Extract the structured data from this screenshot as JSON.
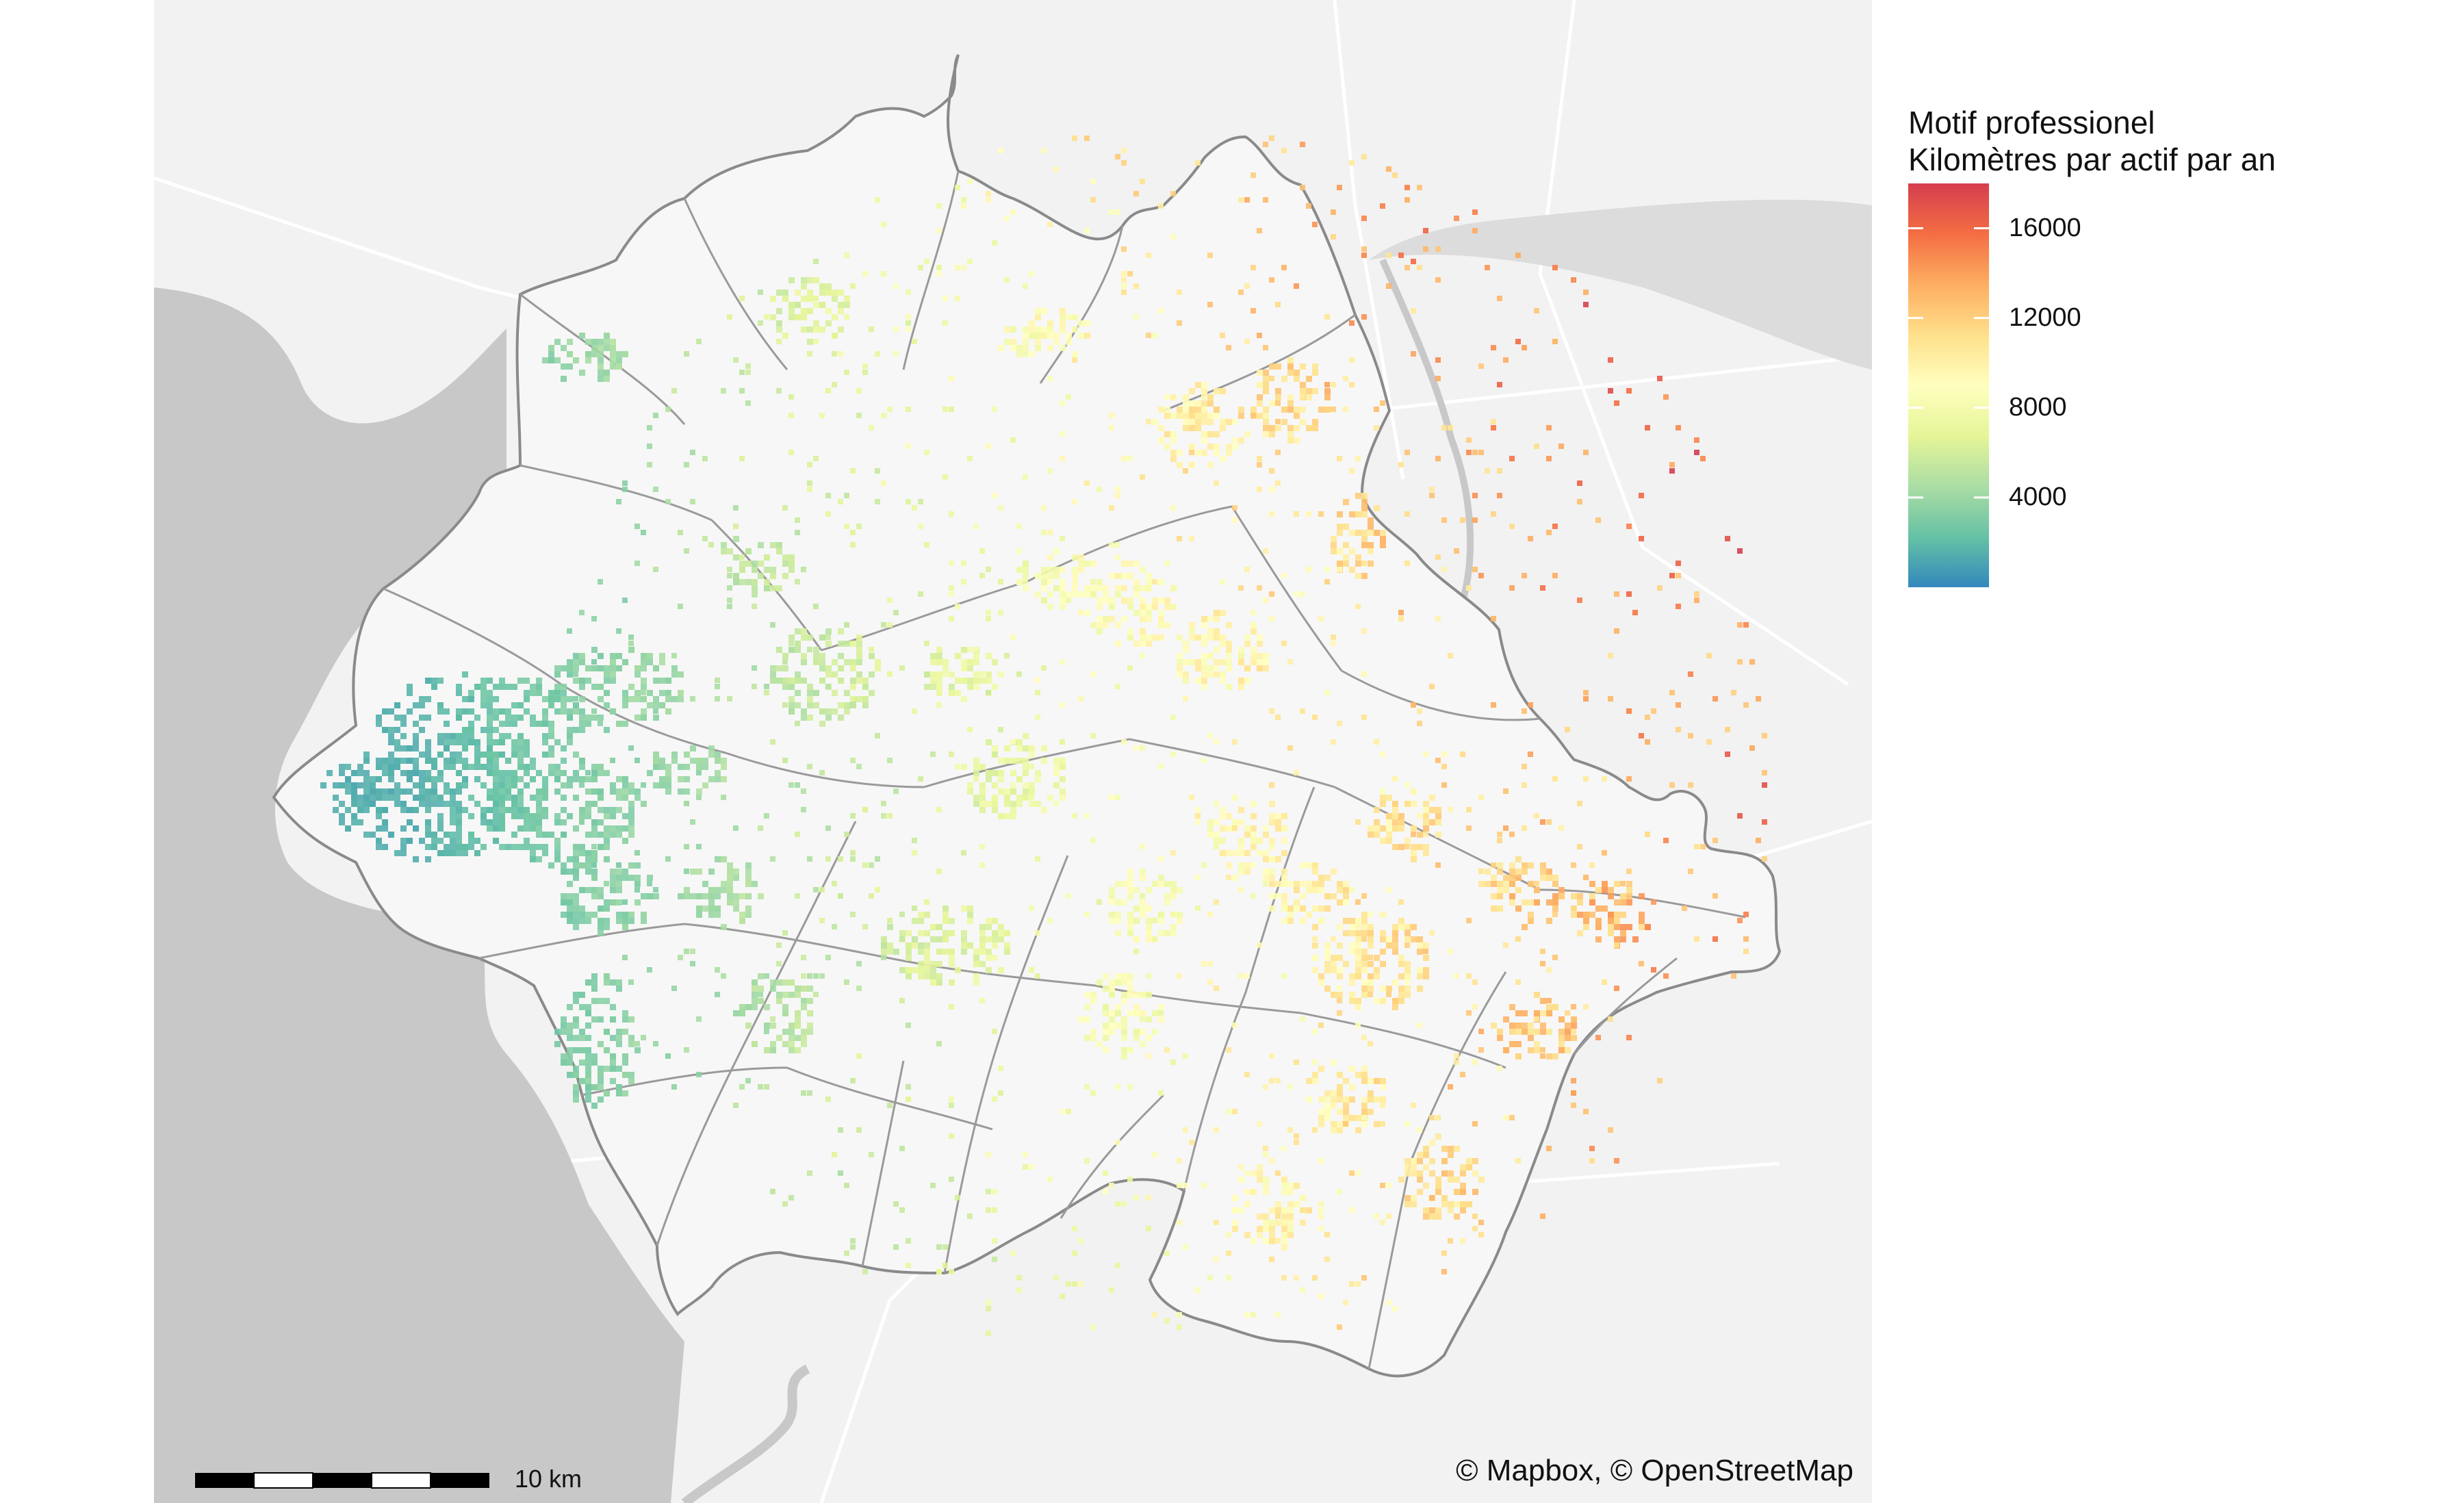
{
  "legend": {
    "title_line1": "Motif professionel",
    "title_line2": "Kilomètres par actif par an",
    "ticks": [
      16000,
      12000,
      8000,
      4000
    ],
    "tick_labels": [
      "16000",
      "12000",
      "8000",
      "4000"
    ],
    "range": [
      0,
      18000
    ],
    "colors": [
      "#3288bd",
      "#66c2a5",
      "#abdda4",
      "#e6f598",
      "#ffffbf",
      "#fee08b",
      "#fdae61",
      "#f46d43",
      "#d53e4f"
    ]
  },
  "scale_bar": {
    "label": "10 km"
  },
  "attribution": "© Mapbox, © OpenStreetMap",
  "colors": {
    "basemap_land": "#f2f2f2",
    "water": "#c8c8c8",
    "boundary": "#8a8a8a",
    "roads": "#ffffff"
  }
}
